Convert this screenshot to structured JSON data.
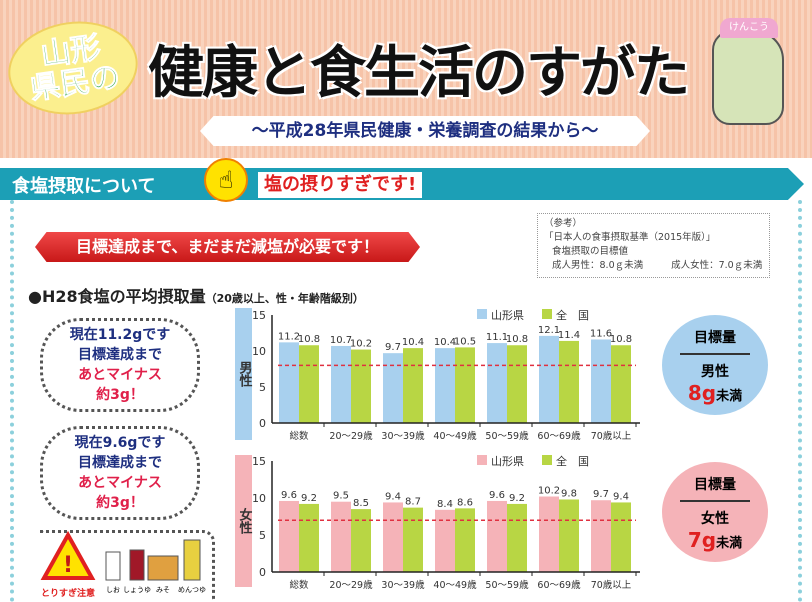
{
  "header": {
    "bubble_line1": "山形",
    "bubble_line2": "県民の",
    "title": "健康と食生活のすがた",
    "subtitle": "～平成28年県民健康・栄養調査の結果から～",
    "mascot_hat": "けんこう"
  },
  "section": {
    "label": "食塩摂取について",
    "warning": "塩の摂りすぎです!"
  },
  "goal_banner": "目標達成まで、まだまだ減塩が必要です！",
  "reference": {
    "l1": "（参考）",
    "l2": "「日本人の食事摂取基準（2015年版）」",
    "l3": "食塩摂取の目標値",
    "male": "成人男性：8.0ｇ未満",
    "female": "成人女性：7.0ｇ未満"
  },
  "heading": {
    "main": "●H28食塩の平均摂取量",
    "sub": "（20歳以上、性・年齢階級別）"
  },
  "bubbles": [
    {
      "l1": "現在11.2gです",
      "l2": "目標達成まで",
      "l3": "あとマイナス",
      "l4": "約3g！"
    },
    {
      "l1": "現在9.6gです",
      "l2": "目標達成まで",
      "l3": "あとマイナス",
      "l4": "約3g！"
    }
  ],
  "icons": {
    "caution": "とりすぎ注意",
    "items": [
      "しお",
      "しょうゆ",
      "みそ",
      "めんつゆ"
    ]
  },
  "targets": [
    {
      "title": "目標量",
      "gender": "男性",
      "value": "8g",
      "unit": "未満",
      "color": "#a8d0ee"
    },
    {
      "title": "目標量",
      "gender": "女性",
      "value": "7g",
      "unit": "未満",
      "color": "#f5b3b8"
    }
  ],
  "chart_data": [
    {
      "type": "bar",
      "group_label": "男性",
      "categories": [
        "総数",
        "20～29歳",
        "30～39歳",
        "40～49歳",
        "50～59歳",
        "60～69歳",
        "70歳以上"
      ],
      "series": [
        {
          "name": "山形県",
          "color": "#a8d0ee",
          "values": [
            11.2,
            10.7,
            9.7,
            10.4,
            11.1,
            12.1,
            11.6
          ]
        },
        {
          "name": "全　国",
          "color": "#b8d644",
          "values": [
            10.8,
            10.2,
            10.4,
            10.5,
            10.8,
            11.4,
            10.8
          ]
        }
      ],
      "ylim": [
        0,
        15
      ],
      "yticks": [
        0,
        5,
        10,
        15
      ],
      "target_line": 8,
      "legend": "top-right"
    },
    {
      "type": "bar",
      "group_label": "女性",
      "categories": [
        "総数",
        "20～29歳",
        "30～39歳",
        "40～49歳",
        "50～59歳",
        "60～69歳",
        "70歳以上"
      ],
      "series": [
        {
          "name": "山形県",
          "color": "#f5b3b8",
          "values": [
            9.6,
            9.5,
            9.4,
            8.4,
            9.6,
            10.2,
            9.7
          ]
        },
        {
          "name": "全　国",
          "color": "#b8d644",
          "values": [
            9.2,
            8.5,
            8.7,
            8.6,
            9.2,
            9.8,
            9.4
          ]
        }
      ],
      "ylim": [
        0,
        15
      ],
      "yticks": [
        0,
        5,
        10,
        15
      ],
      "target_line": 7,
      "legend": "top-right"
    }
  ]
}
